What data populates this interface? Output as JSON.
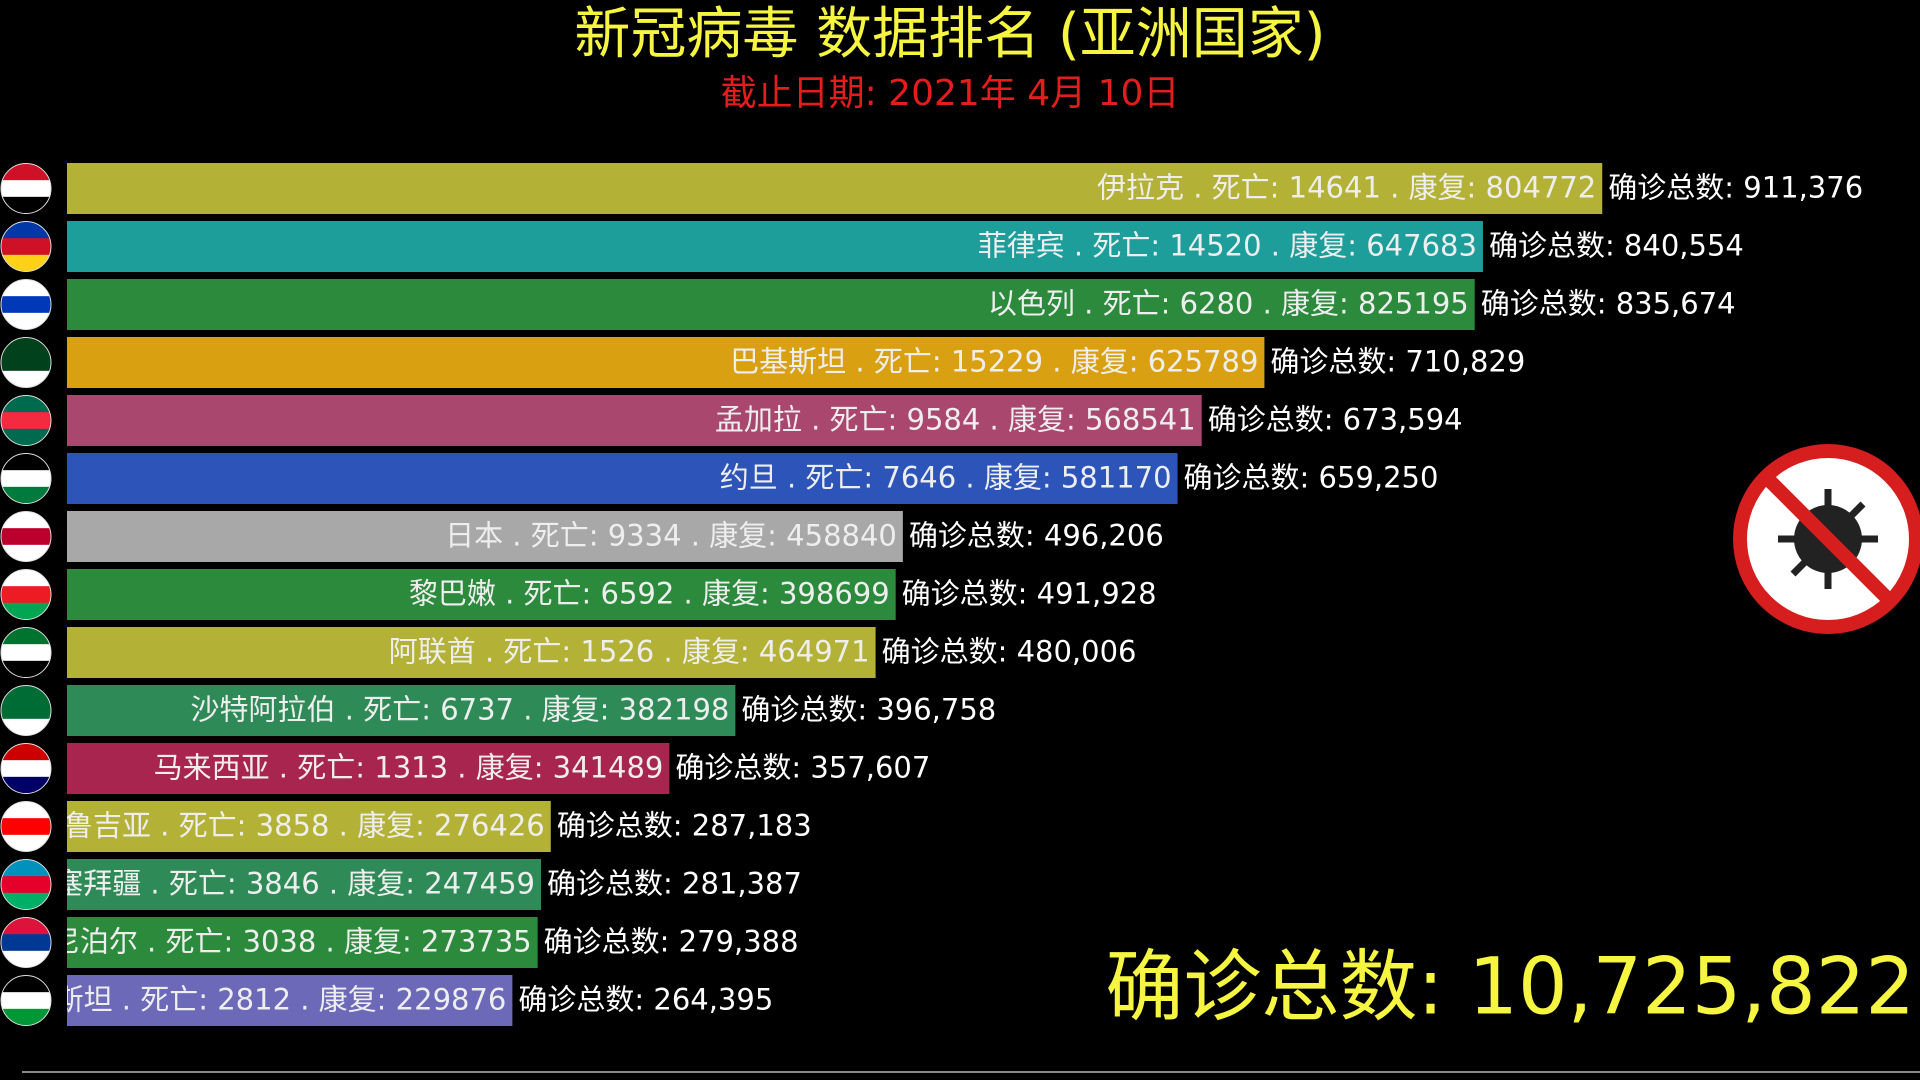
{
  "chart_data": {
    "type": "bar",
    "orientation": "horizontal",
    "title": "新冠病毒 数据排名 (亚洲国家)",
    "subtitle": "截止日期: 2021年 4月 10日",
    "bar_labels": [
      "伊拉克 . 死亡: 14641 . 康复: 804772",
      "菲律宾 . 死亡: 14520 . 康复: 647683",
      "以色列 . 死亡: 6280 . 康复: 825195",
      "巴基斯坦 . 死亡: 15229 . 康复: 625789",
      "孟加拉 . 死亡: 9584 . 康复: 568541",
      "约旦 . 死亡: 7646 . 康复: 581170",
      "日本 . 死亡: 9334 . 康复: 458840",
      "黎巴嫩 . 死亡: 6592 . 康复: 398699",
      "阿联酋 . 死亡: 1526 . 康复: 464971",
      "沙特阿拉伯 . 死亡: 6737 . 康复: 382198",
      "马来西亚 . 死亡: 1313 . 康复: 341489",
      "鲁吉亚 . 死亡: 3858 . 康复: 276426",
      "塞拜疆 . 死亡: 3846 . 康复: 247459",
      "尼泊尔 . 死亡: 3038 . 康复: 273735",
      "斯坦 . 死亡: 2812 . 康复: 229876"
    ],
    "values": [
      911376,
      840554,
      835674,
      710829,
      673594,
      659250,
      496206,
      491928,
      480006,
      396758,
      357607,
      287183,
      281387,
      279388,
      264395
    ],
    "value_labels": [
      "确诊总数: 911,376",
      "确诊总数: 840,554",
      "确诊总数: 835,674",
      "确诊总数: 710,829",
      "确诊总数: 673,594",
      "确诊总数: 659,250",
      "确诊总数: 496,206",
      "确诊总数: 491,928",
      "确诊总数: 480,006",
      "确诊总数: 396,758",
      "确诊总数: 357,607",
      "确诊总数: 287,183",
      "确诊总数: 281,387",
      "确诊总数: 279,388",
      "确诊总数: 264,395"
    ],
    "colors": [
      "#b3b236",
      "#1d9e9b",
      "#2c8a3c",
      "#d9a112",
      "#a9476f",
      "#2c54b9",
      "#a8a8a8",
      "#2c8a3c",
      "#b3b236",
      "#2e8b57",
      "#a8254f",
      "#b3b236",
      "#2e8b57",
      "#2c8a3c",
      "#6b69b8"
    ],
    "xlim": [
      0,
      1100000
    ],
    "total_label": "确诊总数: 10,725,822"
  }
}
